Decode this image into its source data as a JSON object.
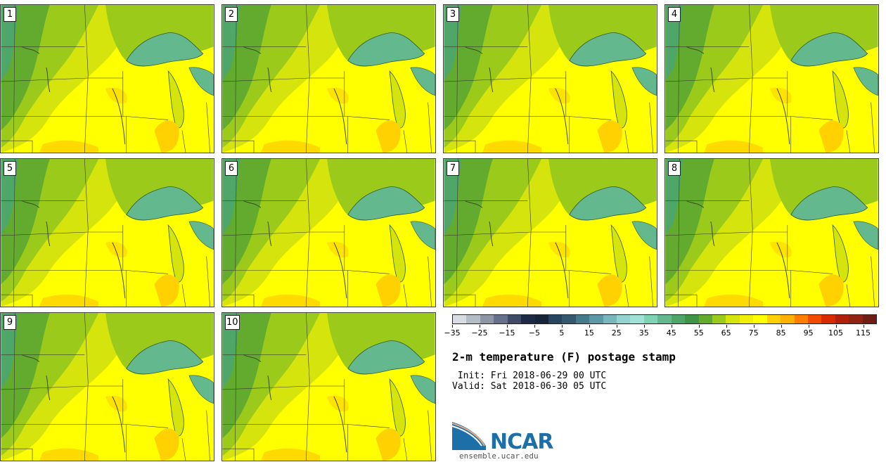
{
  "panels": [
    {
      "label": "1"
    },
    {
      "label": "2"
    },
    {
      "label": "3"
    },
    {
      "label": "4"
    },
    {
      "label": "5"
    },
    {
      "label": "6"
    },
    {
      "label": "7"
    },
    {
      "label": "8"
    },
    {
      "label": "9"
    },
    {
      "label": "10"
    }
  ],
  "colorbar": {
    "colors": [
      "#d9dde3",
      "#b6bcc6",
      "#8e96a5",
      "#66708a",
      "#3f4a66",
      "#1e2a45",
      "#16243a",
      "#284560",
      "#34596f",
      "#447a8a",
      "#5e97a5",
      "#7bb5bd",
      "#93d3d0",
      "#9fe3d6",
      "#7fd2b4",
      "#63b98d",
      "#4ea769",
      "#3f9448",
      "#63ab2e",
      "#9bca1a",
      "#d4e40c",
      "#f1ef07",
      "#ffff00",
      "#ffd100",
      "#ffb000",
      "#ff7e00",
      "#f24a00",
      "#d72a00",
      "#b01f0a",
      "#902412",
      "#6e1e12"
    ],
    "tick_labels": [
      "−35",
      "−25",
      "−15",
      "−5",
      "5",
      "15",
      "25",
      "35",
      "45",
      "55",
      "65",
      "75",
      "85",
      "95",
      "105",
      "115"
    ]
  },
  "title": "2-m temperature (F) postage stamp",
  "init": " Init: Fri 2018-06-29 00 UTC",
  "valid": "Valid: Sat 2018-06-30 05 UTC",
  "logo": {
    "text": "NCAR",
    "site": "ensemble.ucar.edu"
  }
}
